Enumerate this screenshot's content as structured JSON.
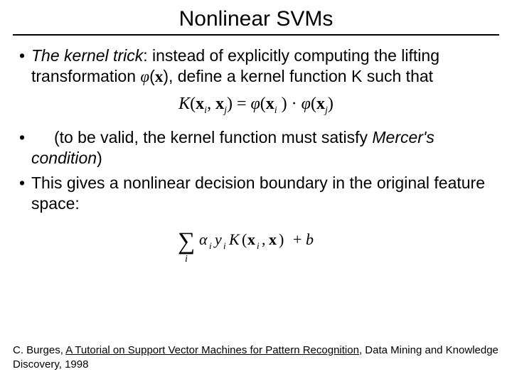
{
  "title": "Nonlinear SVMs",
  "bullet1": {
    "emph": "The kernel trick",
    "rest": ": instead of explicitly computing the lifting transformation ",
    "phi": "φ",
    "x": "x",
    "rest2": ", define a kernel function K such that"
  },
  "equation": {
    "K": "K",
    "x": "x",
    "i": "i",
    "j": "j",
    "eq": " = ",
    "phi": "φ",
    "dot": " · "
  },
  "bullet2": {
    "lead": "(to be valid, the kernel function must satisfy ",
    "emph": "Mercer's condition",
    "tail": ")"
  },
  "bullet3": "This gives a nonlinear decision boundary in the original feature space:",
  "formula": {
    "sigma": "∑",
    "sub_i": "i",
    "alpha": "α",
    "y": "y",
    "K": "K",
    "x": "x",
    "comma": ",",
    "lp": "(",
    "rp": ")",
    "plus": "+",
    "b": "b"
  },
  "citation": {
    "author": "C. Burges, ",
    "title": "A Tutorial on Support Vector Machines for Pattern Recognition",
    "tail": ",  Data Mining and Knowledge Discovery, 1998"
  },
  "colors": {
    "text": "#000000",
    "background": "#ffffff",
    "rule": "#000000"
  },
  "fonts": {
    "body": "Arial",
    "math": "Times New Roman",
    "title_size": 30,
    "body_size": 23,
    "equation_size": 24,
    "citation_size": 15
  }
}
